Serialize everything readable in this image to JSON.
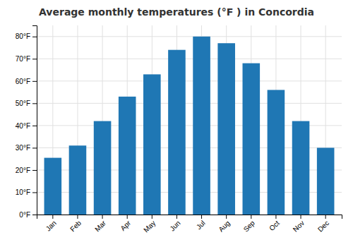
{
  "chart_data": {
    "type": "bar",
    "title": "Average monthly temperatures (°F ) in Concordia",
    "categories": [
      "Jan",
      "Feb",
      "Mar",
      "Apr",
      "May",
      "Jun",
      "Jul",
      "Aug",
      "Sep",
      "Oct",
      "Nov",
      "Dec"
    ],
    "values": [
      25.5,
      31.0,
      42.0,
      53.0,
      63.0,
      74.0,
      80.0,
      77.0,
      68.0,
      56.0,
      42.0,
      30.0
    ],
    "ylim": [
      0,
      85
    ],
    "yticks": [
      {
        "value": 0,
        "label": "0°F"
      },
      {
        "value": 10,
        "label": "10°F"
      },
      {
        "value": 20,
        "label": "20°F"
      },
      {
        "value": 30,
        "label": "30°F"
      },
      {
        "value": 40,
        "label": "40°F"
      },
      {
        "value": 50,
        "label": "50°F"
      },
      {
        "value": 60,
        "label": "60°F"
      },
      {
        "value": 70,
        "label": "70°F"
      },
      {
        "value": 80,
        "label": "80°F"
      }
    ],
    "grid": true
  }
}
